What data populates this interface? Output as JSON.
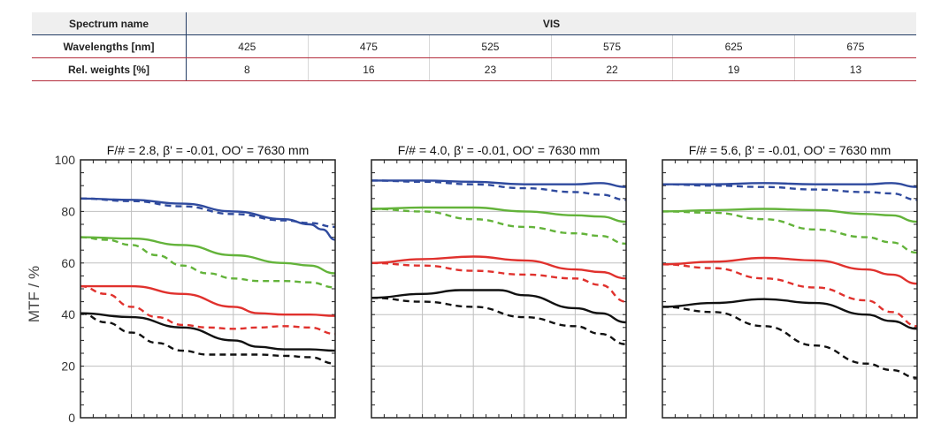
{
  "table": {
    "spectrum_label": "Spectrum name",
    "spectrum_value": "VIS",
    "wavelength_label": "Wavelengths [nm]",
    "weights_label": "Rel. weights [%]",
    "wavelengths": [
      "425",
      "475",
      "525",
      "575",
      "625",
      "675"
    ],
    "weights": [
      "8",
      "16",
      "23",
      "22",
      "19",
      "13"
    ],
    "colors": {
      "header_line": "#233c64",
      "row_line": "#b42d3c",
      "header_bg": "#efefef"
    }
  },
  "chart_common": {
    "ylabel": "MTF / %",
    "yticks": [
      "100",
      "80",
      "60",
      "40",
      "20",
      "0"
    ],
    "ylim": [
      0,
      100
    ],
    "xlim": [
      0,
      1
    ],
    "grid": true,
    "colors": {
      "blue": "#2f4a9e",
      "green": "#63b33a",
      "red": "#e0312d",
      "black": "#111111"
    }
  },
  "chart_data": [
    {
      "type": "line",
      "title": "F/# = 2.8, β' = -0.01, OO' = 7630 mm",
      "series": [
        {
          "color": "blue",
          "style": "solid",
          "x": [
            0,
            0.2,
            0.4,
            0.6,
            0.8,
            0.9,
            0.95,
            1.0
          ],
          "y": [
            85,
            84.5,
            83,
            80,
            77,
            75,
            73,
            69
          ]
        },
        {
          "color": "blue",
          "style": "dashed",
          "x": [
            0,
            0.2,
            0.4,
            0.6,
            0.8,
            0.9,
            1.0
          ],
          "y": [
            85,
            84,
            82,
            79,
            76.5,
            75.5,
            74
          ]
        },
        {
          "color": "green",
          "style": "solid",
          "x": [
            0,
            0.2,
            0.4,
            0.6,
            0.8,
            0.9,
            1.0
          ],
          "y": [
            70,
            69.5,
            67,
            63,
            60,
            59,
            56
          ]
        },
        {
          "color": "green",
          "style": "dashed",
          "x": [
            0,
            0.1,
            0.2,
            0.3,
            0.4,
            0.5,
            0.6,
            0.7,
            0.8,
            0.9,
            1.0
          ],
          "y": [
            70,
            69,
            67,
            63,
            59,
            56,
            54,
            53,
            53,
            52.5,
            50.5
          ]
        },
        {
          "color": "red",
          "style": "solid",
          "x": [
            0,
            0.2,
            0.4,
            0.6,
            0.7,
            0.8,
            0.9,
            1.0
          ],
          "y": [
            51,
            51,
            48,
            43,
            40.5,
            40,
            40,
            39.5
          ]
        },
        {
          "color": "red",
          "style": "dashed",
          "x": [
            0,
            0.1,
            0.2,
            0.3,
            0.4,
            0.5,
            0.6,
            0.7,
            0.8,
            0.9,
            1.0
          ],
          "y": [
            51,
            48,
            43,
            39,
            36,
            35,
            34.5,
            35,
            35.5,
            35,
            32.5
          ]
        },
        {
          "color": "black",
          "style": "solid",
          "x": [
            0,
            0.2,
            0.4,
            0.6,
            0.7,
            0.8,
            0.9,
            1.0
          ],
          "y": [
            40.5,
            39,
            35,
            30,
            27.5,
            26.5,
            26.5,
            26
          ]
        },
        {
          "color": "black",
          "style": "dashed",
          "x": [
            0,
            0.1,
            0.2,
            0.3,
            0.4,
            0.5,
            0.6,
            0.7,
            0.8,
            0.9,
            1.0
          ],
          "y": [
            40.5,
            37,
            33,
            29,
            26,
            24.5,
            24.5,
            24.5,
            24,
            23.5,
            21
          ]
        }
      ]
    },
    {
      "type": "line",
      "title": "F/# = 4.0, β' = -0.01, OO' = 7630 mm",
      "series": [
        {
          "color": "blue",
          "style": "solid",
          "x": [
            0,
            0.2,
            0.4,
            0.6,
            0.8,
            0.9,
            1.0
          ],
          "y": [
            92,
            92,
            91.5,
            90.5,
            90.5,
            91,
            89.5
          ]
        },
        {
          "color": "blue",
          "style": "dashed",
          "x": [
            0,
            0.2,
            0.4,
            0.6,
            0.8,
            0.9,
            1.0
          ],
          "y": [
            92,
            91.5,
            90.5,
            89,
            87.5,
            86.5,
            84.5
          ]
        },
        {
          "color": "green",
          "style": "solid",
          "x": [
            0,
            0.2,
            0.4,
            0.6,
            0.8,
            0.9,
            1.0
          ],
          "y": [
            81,
            81.5,
            81.5,
            80,
            78.5,
            78,
            76
          ]
        },
        {
          "color": "green",
          "style": "dashed",
          "x": [
            0,
            0.2,
            0.4,
            0.6,
            0.8,
            0.9,
            1.0
          ],
          "y": [
            81,
            80,
            77,
            74,
            71.5,
            70.5,
            67.5
          ]
        },
        {
          "color": "red",
          "style": "solid",
          "x": [
            0,
            0.2,
            0.4,
            0.6,
            0.8,
            0.9,
            1.0
          ],
          "y": [
            60,
            61.5,
            62.5,
            61,
            57.5,
            56.5,
            54
          ]
        },
        {
          "color": "red",
          "style": "dashed",
          "x": [
            0,
            0.2,
            0.4,
            0.6,
            0.8,
            0.9,
            1.0
          ],
          "y": [
            60,
            59,
            57,
            55.5,
            54,
            51.5,
            45
          ]
        },
        {
          "color": "black",
          "style": "solid",
          "x": [
            0,
            0.2,
            0.35,
            0.5,
            0.6,
            0.8,
            0.9,
            1.0
          ],
          "y": [
            46.5,
            48,
            49.5,
            49.5,
            47.5,
            42.5,
            40.5,
            37
          ]
        },
        {
          "color": "black",
          "style": "dashed",
          "x": [
            0,
            0.2,
            0.4,
            0.6,
            0.8,
            0.9,
            1.0
          ],
          "y": [
            46.5,
            45,
            43,
            39,
            35.5,
            32.5,
            28.5
          ]
        }
      ]
    },
    {
      "type": "line",
      "title": "F/# = 5.6, β' = -0.01, OO' = 7630 mm",
      "series": [
        {
          "color": "blue",
          "style": "solid",
          "x": [
            0,
            0.2,
            0.4,
            0.6,
            0.8,
            0.9,
            1.0
          ],
          "y": [
            90.5,
            90.5,
            91,
            90.5,
            90.5,
            91,
            89.5
          ]
        },
        {
          "color": "blue",
          "style": "dashed",
          "x": [
            0,
            0.2,
            0.4,
            0.6,
            0.8,
            0.9,
            1.0
          ],
          "y": [
            90.5,
            90,
            89.5,
            88.5,
            87.5,
            87,
            84.5
          ]
        },
        {
          "color": "green",
          "style": "solid",
          "x": [
            0,
            0.2,
            0.4,
            0.6,
            0.8,
            0.9,
            1.0
          ],
          "y": [
            80,
            80.5,
            81,
            80.5,
            79,
            78.5,
            76
          ]
        },
        {
          "color": "green",
          "style": "dashed",
          "x": [
            0,
            0.2,
            0.4,
            0.6,
            0.8,
            0.9,
            1.0
          ],
          "y": [
            80,
            79.5,
            77,
            73,
            70,
            68,
            64
          ]
        },
        {
          "color": "red",
          "style": "solid",
          "x": [
            0,
            0.2,
            0.4,
            0.6,
            0.8,
            0.9,
            1.0
          ],
          "y": [
            59.5,
            60.5,
            62,
            61,
            57.5,
            55.5,
            52
          ]
        },
        {
          "color": "red",
          "style": "dashed",
          "x": [
            0,
            0.2,
            0.4,
            0.6,
            0.8,
            0.9,
            1.0
          ],
          "y": [
            59.5,
            58,
            54,
            50.5,
            45.5,
            41,
            35.5
          ]
        },
        {
          "color": "black",
          "style": "solid",
          "x": [
            0,
            0.2,
            0.4,
            0.6,
            0.8,
            0.9,
            1.0
          ],
          "y": [
            43,
            44.5,
            46,
            44.5,
            40,
            37.5,
            34.5
          ]
        },
        {
          "color": "black",
          "style": "dashed",
          "x": [
            0,
            0.2,
            0.4,
            0.6,
            0.8,
            0.9,
            1.0
          ],
          "y": [
            43,
            41,
            35.5,
            28,
            21,
            18.5,
            15.5
          ]
        }
      ]
    }
  ]
}
